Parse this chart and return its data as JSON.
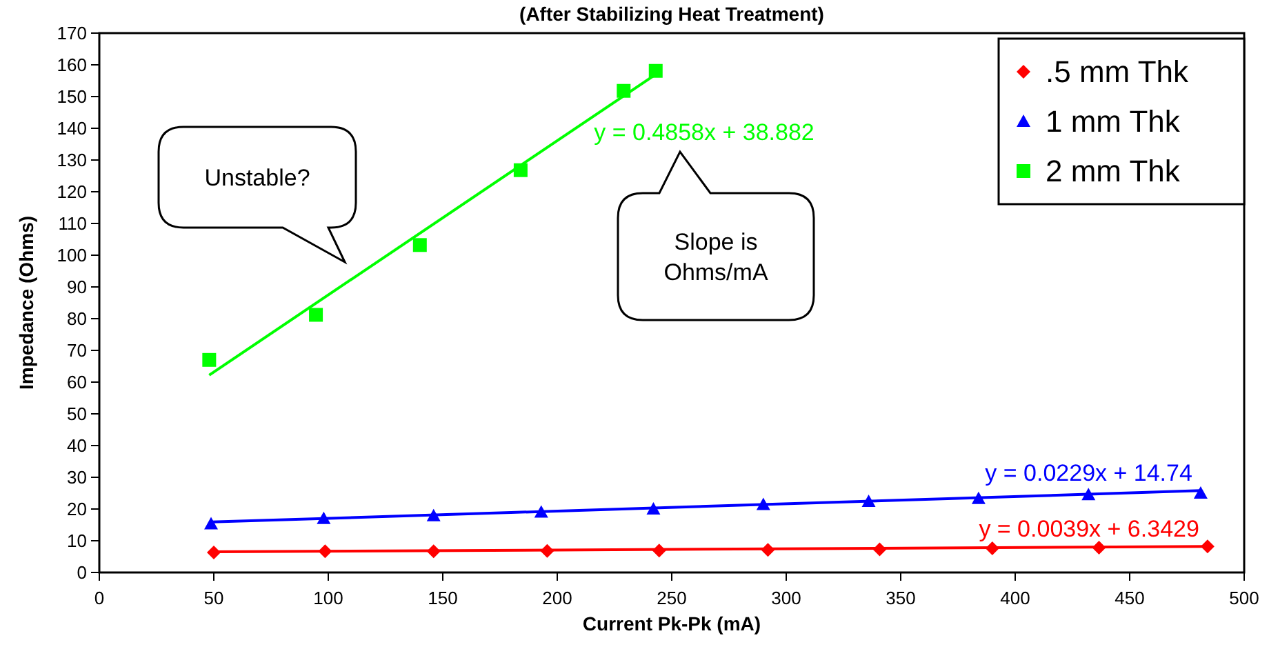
{
  "chart_data": {
    "type": "scatter",
    "title": "(After Stabilizing Heat Treatment)",
    "xlabel": "Current Pk-Pk (mA)",
    "ylabel": "Impedance (Ohms)",
    "xlim": [
      0,
      500
    ],
    "xticks": [
      0,
      50,
      100,
      150,
      200,
      250,
      300,
      350,
      400,
      450,
      500
    ],
    "ylim": [
      0,
      170
    ],
    "yticks": [
      0,
      10,
      20,
      30,
      40,
      50,
      60,
      70,
      80,
      90,
      100,
      110,
      120,
      130,
      140,
      150,
      160,
      170
    ],
    "grid": false,
    "legend": "top right",
    "series": [
      {
        "name": ".5 mm Thk",
        "marker": "diamond",
        "color": "#ff0000",
        "x": [
          50,
          98.6,
          146,
          195.6,
          244.5,
          292,
          340.8,
          390,
          436.6,
          484
        ],
        "values": [
          6.3,
          6.7,
          6.7,
          6.8,
          6.9,
          7.1,
          7.3,
          7.6,
          7.8,
          8.2
        ]
      },
      {
        "name": "1 mm Thk",
        "marker": "triangle",
        "color": "#0000ff",
        "x": [
          48.8,
          98,
          146,
          193,
          242,
          290,
          336,
          384,
          432,
          481
        ],
        "values": [
          15.3,
          17.0,
          17.9,
          19.0,
          20.0,
          21.4,
          22.4,
          23.3,
          24.5,
          25.0
        ]
      },
      {
        "name": "2 mm Thk",
        "marker": "square",
        "color": "#00ff00",
        "x": [
          48,
          94.6,
          140,
          184,
          229,
          243
        ],
        "values": [
          67,
          81.2,
          103.2,
          126.8,
          151.8,
          158.1
        ]
      },
      {
        "name": "y = 0.0039x + 6.3429",
        "type": "line",
        "color": "#ff0000",
        "x": [
          50,
          484
        ],
        "values": [
          6.5,
          8.2
        ]
      },
      {
        "name": "y = 0.0229x + 14.74",
        "type": "line",
        "color": "#0000ff",
        "x": [
          49,
          481
        ],
        "values": [
          15.9,
          25.8
        ]
      },
      {
        "name": "y = 0.4858x + 38.882",
        "type": "line",
        "color": "#00ff00",
        "x": [
          48,
          243
        ],
        "values": [
          62.2,
          157.0
        ]
      }
    ],
    "annotations": [
      "Unstable?",
      "Slope is Ohms/mA"
    ]
  }
}
